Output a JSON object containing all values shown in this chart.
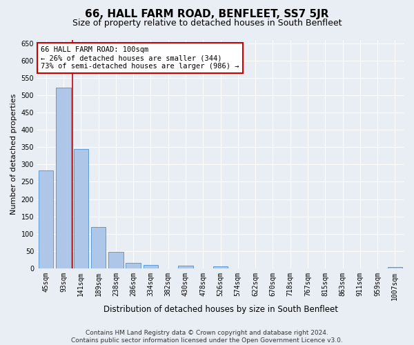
{
  "title": "66, HALL FARM ROAD, BENFLEET, SS7 5JR",
  "subtitle": "Size of property relative to detached houses in South Benfleet",
  "xlabel": "Distribution of detached houses by size in South Benfleet",
  "ylabel": "Number of detached properties",
  "footer_line1": "Contains HM Land Registry data © Crown copyright and database right 2024.",
  "footer_line2": "Contains public sector information licensed under the Open Government Licence v3.0.",
  "categories": [
    "45sqm",
    "93sqm",
    "141sqm",
    "189sqm",
    "238sqm",
    "286sqm",
    "334sqm",
    "382sqm",
    "430sqm",
    "478sqm",
    "526sqm",
    "574sqm",
    "622sqm",
    "670sqm",
    "718sqm",
    "767sqm",
    "815sqm",
    "863sqm",
    "911sqm",
    "959sqm",
    "1007sqm"
  ],
  "values": [
    283,
    522,
    344,
    120,
    48,
    16,
    11,
    0,
    9,
    0,
    7,
    0,
    0,
    0,
    0,
    0,
    0,
    0,
    0,
    0,
    5
  ],
  "bar_color": "#aec6e8",
  "bar_edge_color": "#5b9bd5",
  "vline_color": "#cc0000",
  "annotation_text": "66 HALL FARM ROAD: 100sqm\n← 26% of detached houses are smaller (344)\n73% of semi-detached houses are larger (986) →",
  "annotation_box_color": "#ffffff",
  "annotation_box_edge_color": "#cc0000",
  "ylim": [
    0,
    660
  ],
  "yticks": [
    0,
    50,
    100,
    150,
    200,
    250,
    300,
    350,
    400,
    450,
    500,
    550,
    600,
    650
  ],
  "bg_color": "#e8eef4",
  "title_fontsize": 11,
  "subtitle_fontsize": 9,
  "xlabel_fontsize": 8.5,
  "ylabel_fontsize": 8,
  "tick_fontsize": 7,
  "annotation_fontsize": 7.5,
  "footer_fontsize": 6.5
}
